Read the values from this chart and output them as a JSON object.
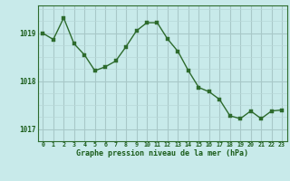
{
  "x": [
    0,
    1,
    2,
    3,
    4,
    5,
    6,
    7,
    8,
    9,
    10,
    11,
    12,
    13,
    14,
    15,
    16,
    17,
    18,
    19,
    20,
    21,
    22,
    23
  ],
  "y": [
    1019.0,
    1018.87,
    1019.32,
    1018.78,
    1018.55,
    1018.22,
    1018.3,
    1018.42,
    1018.72,
    1019.05,
    1019.22,
    1019.22,
    1018.88,
    1018.62,
    1018.22,
    1017.87,
    1017.78,
    1017.62,
    1017.28,
    1017.22,
    1017.38,
    1017.22,
    1017.38,
    1017.4
  ],
  "line_color": "#2d6b2d",
  "marker_color": "#2d6b2d",
  "bg_color": "#c8eaea",
  "grid_color_major": "#a8c8c8",
  "grid_color_minor": "#b8d8d8",
  "xlabel": "Graphe pression niveau de la mer (hPa)",
  "xlabel_color": "#1a5c1a",
  "tick_color": "#1a5c1a",
  "axis_color": "#2d6b2d",
  "ylim": [
    1016.75,
    1019.58
  ],
  "yticks": [
    1017.0,
    1018.0,
    1019.0
  ],
  "xlim": [
    -0.5,
    23.5
  ],
  "figsize": [
    3.2,
    2.0
  ],
  "dpi": 100
}
